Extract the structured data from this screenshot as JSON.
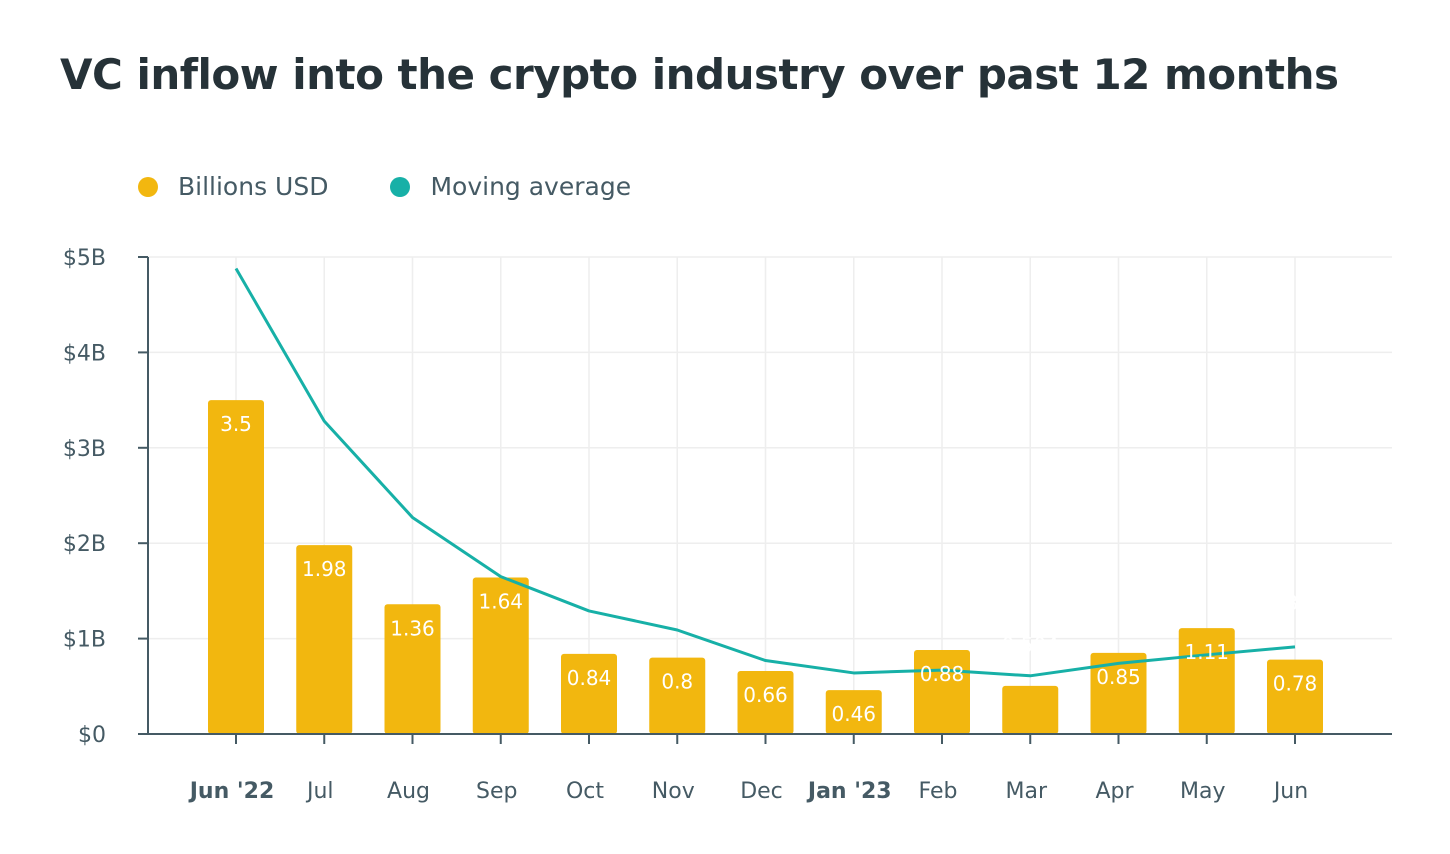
{
  "title": "VC inflow into the crypto industry over past 12 months",
  "colors": {
    "bar": "#f2b70f",
    "line": "#17b0a7",
    "axis": "#455a64",
    "grid": "#eeeeee",
    "text": "#263238"
  },
  "legend": [
    {
      "label": "Billions USD",
      "color": "#f2b70f"
    },
    {
      "label": "Moving average",
      "color": "#17b0a7"
    }
  ],
  "chart_data": {
    "type": "bar",
    "title": "VC inflow into the crypto industry over past 12 months",
    "xlabel": "",
    "ylabel": "",
    "ylim": [
      0,
      5
    ],
    "yticks": [
      0,
      1,
      2,
      3,
      4,
      5
    ],
    "ytick_labels": [
      "$0",
      "$1B",
      "$2B",
      "$3B",
      "$4B",
      "$5B"
    ],
    "grid": true,
    "legend_position": "top-left",
    "categories": [
      "Jun '22",
      "Jul",
      "Aug",
      "Sep",
      "Oct",
      "Nov",
      "Dec",
      "Jan '23",
      "Feb",
      "Mar",
      "Apr",
      "May",
      "Jun"
    ],
    "bold_categories": [
      "Jun '22",
      "Jan '23"
    ],
    "series": [
      {
        "name": "Billions USD",
        "type": "bar",
        "values": [
          3.5,
          1.98,
          1.36,
          1.64,
          0.84,
          0.8,
          0.66,
          0.46,
          0.88,
          0.504,
          0.85,
          1.11,
          0.78
        ],
        "labels": [
          "3.5",
          "1.98",
          "1.36",
          "1.64",
          "0.84",
          "0.8",
          "0.66",
          "0.46",
          "0.88",
          "0.504",
          "0.85",
          "1.11",
          "0.78"
        ],
        "label_outside": [
          false,
          false,
          false,
          false,
          false,
          false,
          false,
          false,
          false,
          true,
          false,
          false,
          false
        ]
      },
      {
        "name": "Moving average",
        "type": "line",
        "values": [
          4.88,
          3.28,
          2.27,
          1.65,
          1.29,
          1.09,
          0.77,
          0.64,
          0.67,
          0.61,
          0.74,
          0.83,
          0.913333333
        ],
        "end_label": "0.913333333"
      }
    ]
  }
}
